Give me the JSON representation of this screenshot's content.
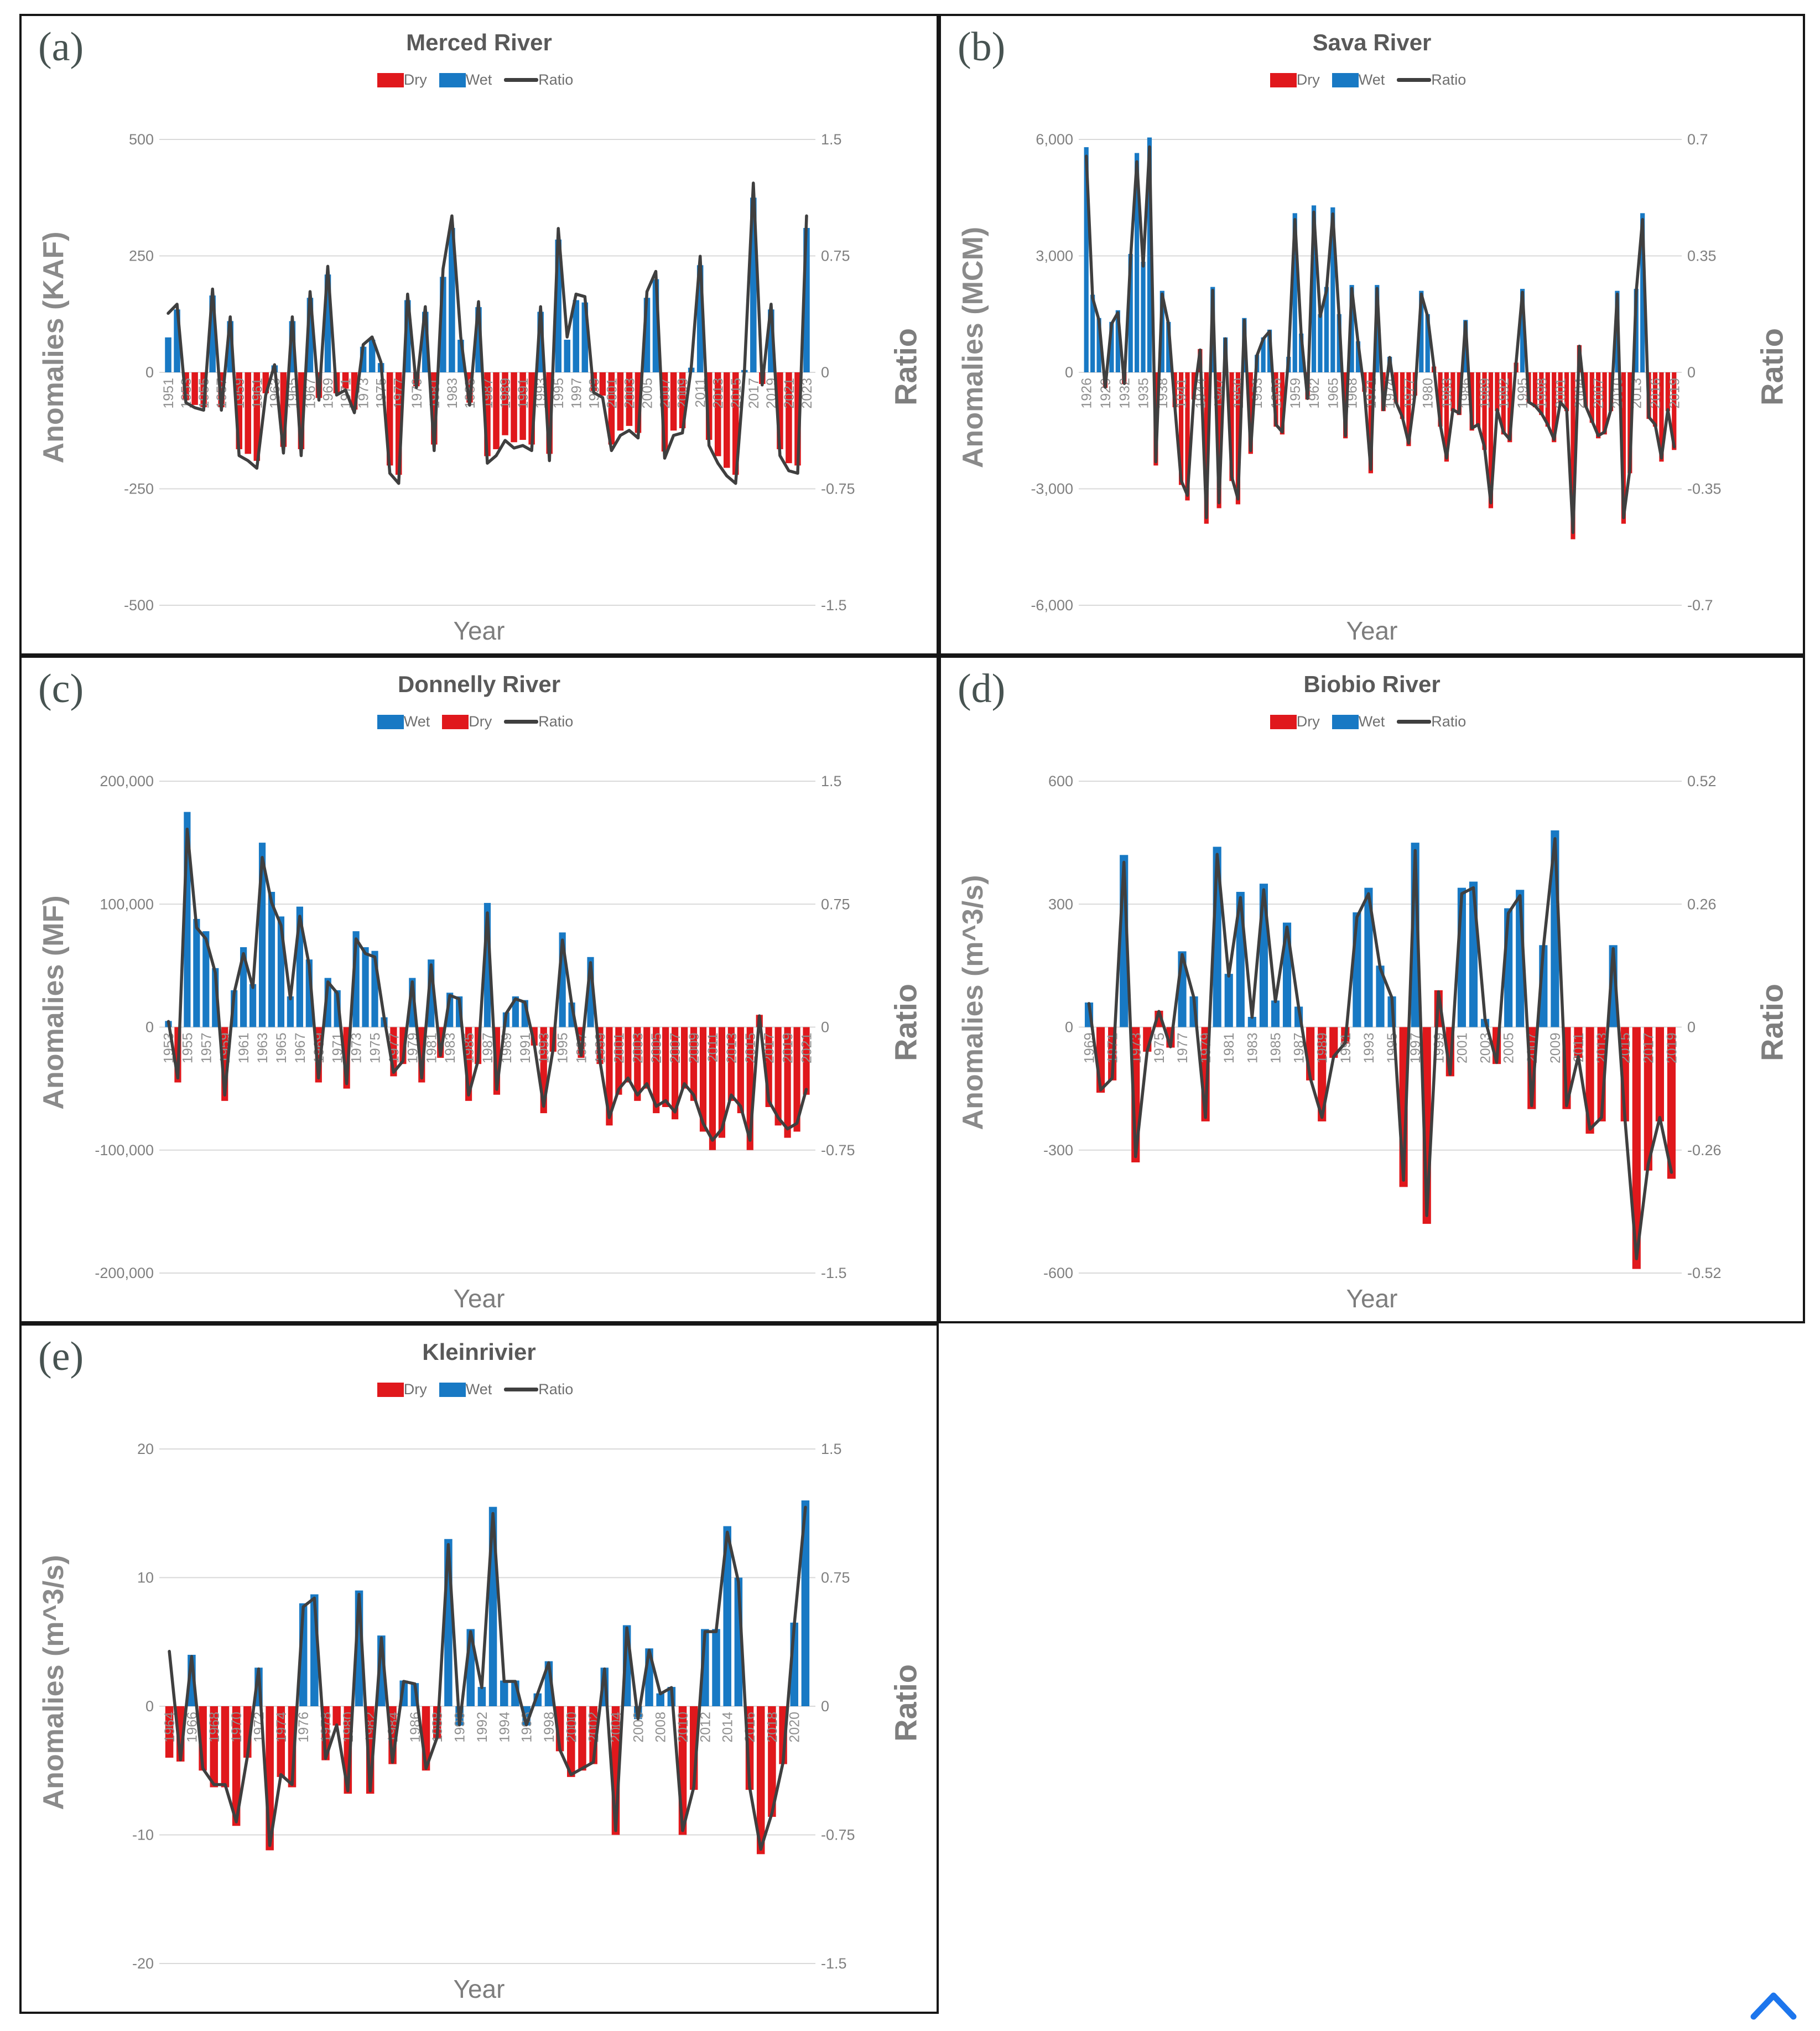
{
  "palette": {
    "dry": "#E0181C",
    "wet": "#1879C4",
    "ratio_line": "#3F3F3F",
    "grid": "#D9D9D9",
    "title_text": "#595959",
    "tick_text": "#7F7F7F",
    "year_tick_text": "#8F8F8F",
    "axis_title_text": "#8A8A8A",
    "panel_letter_text": "#475351",
    "chevron": "#1D76ED"
  },
  "icons": {
    "back_to_top": "chevron-up-icon"
  },
  "chart_data": [
    {
      "id": "a",
      "type": "bar",
      "panel_label": "(a)",
      "title": "Merced River",
      "legend": [
        {
          "key": "dry",
          "label": "Dry"
        },
        {
          "key": "wet",
          "label": "Wet"
        },
        {
          "key": "ratio",
          "label": "Ratio"
        }
      ],
      "x_label": "Year",
      "y_left": {
        "title": "Anomalies (KAF)",
        "tick_values": [
          500,
          250,
          0,
          -250,
          -500
        ],
        "tick_labels": [
          "500",
          "250",
          "0",
          "-250",
          "-500"
        ]
      },
      "y_right": {
        "title": "Ratio",
        "tick_values": [
          1.5,
          0.75,
          0,
          -0.75,
          -1.5
        ],
        "tick_labels": [
          "1.5",
          "0.75",
          "0",
          "-0.75",
          "-1.5"
        ]
      },
      "start_year": 1951,
      "x_ticks": {
        "start": 1951,
        "step": 2
      },
      "values": [
        75,
        135,
        -60,
        -70,
        -75,
        165,
        -75,
        110,
        -165,
        -175,
        -190,
        -45,
        15,
        -160,
        110,
        -165,
        160,
        -55,
        210,
        -45,
        -35,
        -80,
        55,
        70,
        20,
        -200,
        -220,
        155,
        -30,
        130,
        -155,
        205,
        310,
        70,
        -65,
        140,
        -180,
        -165,
        -135,
        -150,
        -145,
        -155,
        130,
        -175,
        285,
        70,
        155,
        150,
        -40,
        -50,
        -155,
        -125,
        -115,
        -130,
        160,
        200,
        -170,
        -125,
        -120,
        10,
        230,
        -145,
        -180,
        -205,
        -220,
        5,
        375,
        -25,
        135,
        -165,
        -195,
        -200,
        310
      ],
      "dry_positive_years": [],
      "wet_negative_years": [],
      "ratio_scale": 0.00325,
      "ratio_overrides": {
        "1951": 0.38
      }
    },
    {
      "id": "b",
      "type": "bar",
      "panel_label": "(b)",
      "title": "Sava River",
      "legend": [
        {
          "key": "dry",
          "label": "Dry"
        },
        {
          "key": "wet",
          "label": "Wet"
        },
        {
          "key": "ratio",
          "label": "Ratio"
        }
      ],
      "x_label": "Year",
      "y_left": {
        "title": "Anomalies (MCM)",
        "tick_values": [
          6000,
          3000,
          0,
          -3000,
          -6000
        ],
        "tick_labels": [
          "6,000",
          "3,000",
          "0",
          "-3,000",
          "-6,000"
        ]
      },
      "y_right": {
        "title": "Ratio",
        "tick_values": [
          0.7,
          0.35,
          0,
          -0.35,
          -0.7
        ],
        "tick_labels": [
          "0.7",
          "0.35",
          "0",
          "-0.35",
          "-0.7"
        ]
      },
      "start_year": 1926,
      "x_ticks": {
        "start": 1926,
        "step": 3
      },
      "values": [
        5800,
        2000,
        1400,
        -400,
        1300,
        1600,
        -300,
        3050,
        5650,
        2850,
        6050,
        -2400,
        2100,
        1300,
        -900,
        -2900,
        -3300,
        -700,
        600,
        -3900,
        2200,
        -3500,
        900,
        -2800,
        -3400,
        1400,
        -2100,
        450,
        900,
        1100,
        -1400,
        -1600,
        400,
        4100,
        1000,
        -700,
        4300,
        1500,
        2200,
        4250,
        1500,
        -1700,
        2250,
        800,
        -500,
        -2600,
        2250,
        -1000,
        400,
        -800,
        -1200,
        -1900,
        -600,
        2100,
        1500,
        150,
        -1400,
        -2300,
        -1000,
        -1100,
        1350,
        -1500,
        -1400,
        -2000,
        -3500,
        -1000,
        -1600,
        -1800,
        250,
        2150,
        -800,
        -900,
        -1100,
        -1400,
        -1800,
        -800,
        -1000,
        -4300,
        700,
        -900,
        -1300,
        -1700,
        -1600,
        -1000,
        2100,
        -3900,
        -2600,
        2150,
        4100,
        -1200,
        -1400,
        -2300,
        -1000,
        -2000
      ],
      "dry_positive_years": [
        1944,
        1981,
        1994,
        2004
      ],
      "wet_negative_years": [],
      "ratio_scale": 0.000112,
      "ratio_overrides": {}
    },
    {
      "id": "c",
      "type": "bar",
      "panel_label": "(c)",
      "title": "Donnelly River",
      "legend": [
        {
          "key": "wet",
          "label": "Wet"
        },
        {
          "key": "dry",
          "label": "Dry"
        },
        {
          "key": "ratio",
          "label": "Ratio"
        }
      ],
      "x_label": "Year",
      "y_left": {
        "title": "Anomalies (MF)",
        "tick_values": [
          200000,
          100000,
          0,
          -100000,
          -200000
        ],
        "tick_labels": [
          "200,000",
          "100,000",
          "0",
          "-100,000",
          "-200,000"
        ]
      },
      "y_right": {
        "title": "Ratio",
        "tick_values": [
          1.5,
          0.75,
          0,
          -0.75,
          -1.5
        ],
        "tick_labels": [
          "1.5",
          "0.75",
          "0",
          "-0.75",
          "-1.5"
        ]
      },
      "start_year": 1953,
      "x_ticks": {
        "start": 1953,
        "step": 2
      },
      "values": [
        5000,
        -45000,
        175000,
        88000,
        78000,
        48000,
        -60000,
        30000,
        65000,
        35000,
        150000,
        110000,
        90000,
        25000,
        98000,
        55000,
        -45000,
        40000,
        30000,
        -50000,
        78000,
        65000,
        62000,
        8000,
        -40000,
        -30000,
        40000,
        -45000,
        55000,
        -25000,
        28000,
        25000,
        -60000,
        -30000,
        101000,
        -55000,
        12000,
        25000,
        22000,
        -15000,
        -70000,
        -20000,
        77000,
        20000,
        -25000,
        57000,
        -30000,
        -80000,
        -55000,
        -45000,
        -60000,
        -50000,
        -70000,
        -65000,
        -75000,
        -50000,
        -60000,
        -85000,
        -100000,
        -90000,
        -60000,
        -70000,
        -100000,
        10000,
        -65000,
        -80000,
        -90000,
        -85000,
        -55000
      ],
      "dry_positive_years": [
        2016
      ],
      "wet_negative_years": [],
      "ratio_scale": 6.9e-06,
      "ratio_overrides": {}
    },
    {
      "id": "d",
      "type": "bar",
      "panel_label": "(d)",
      "title": "Biobio River",
      "legend": [
        {
          "key": "dry",
          "label": "Dry"
        },
        {
          "key": "wet",
          "label": "Wet"
        },
        {
          "key": "ratio",
          "label": "Ratio"
        }
      ],
      "x_label": "Year",
      "y_left": {
        "title": "Anomalies (m^3/s)",
        "tick_values": [
          600,
          300,
          0,
          -300,
          -600
        ],
        "tick_labels": [
          "600",
          "300",
          "0",
          "-300",
          "-600"
        ]
      },
      "y_right": {
        "title": "Ratio",
        "tick_values": [
          0.52,
          0.26,
          0,
          -0.26,
          -0.52
        ],
        "tick_labels": [
          "0.52",
          "0.26",
          "0",
          "-0.26",
          "-0.52"
        ]
      },
      "start_year": 1969,
      "x_ticks": {
        "start": 1969,
        "step": 2
      },
      "values": [
        60,
        -160,
        -130,
        420,
        -330,
        -60,
        40,
        -50,
        185,
        75,
        -230,
        440,
        130,
        330,
        25,
        350,
        65,
        255,
        50,
        -130,
        -230,
        -75,
        -40,
        280,
        340,
        150,
        75,
        -390,
        450,
        -480,
        90,
        -120,
        340,
        355,
        20,
        -90,
        290,
        335,
        -200,
        200,
        480,
        -200,
        -75,
        -260,
        -230,
        200,
        -230,
        -590,
        -350,
        -230,
        -370
      ],
      "dry_positive_years": [
        1975,
        1999
      ],
      "wet_negative_years": [],
      "ratio_scale": 0.00083,
      "ratio_overrides": {}
    },
    {
      "id": "e",
      "type": "bar",
      "panel_label": "(e)",
      "title": "Kleinrivier",
      "legend": [
        {
          "key": "dry",
          "label": "Dry"
        },
        {
          "key": "wet",
          "label": "Wet"
        },
        {
          "key": "ratio",
          "label": "Ratio"
        }
      ],
      "x_label": "Year",
      "y_left": {
        "title": "Anomalies (m^3/s)",
        "tick_values": [
          20,
          10,
          0,
          -10,
          -20
        ],
        "tick_labels": [
          "20",
          "10",
          "0",
          "-10",
          "-20"
        ]
      },
      "y_right": {
        "title": "Ratio",
        "tick_values": [
          1.5,
          0.75,
          0,
          -0.75,
          -1.5
        ],
        "tick_labels": [
          "1.5",
          "0.75",
          "0",
          "-0.75",
          "-1.5"
        ]
      },
      "start_year": 1964,
      "x_ticks": {
        "start": 1964,
        "step": 2
      },
      "values": [
        -4,
        -4.3,
        4,
        -5,
        -6.3,
        -6.3,
        -9.3,
        -4,
        3,
        -11.2,
        -5.5,
        -6.3,
        8,
        8.7,
        -4.2,
        -1.5,
        -6.8,
        9,
        -6.8,
        5.5,
        -4.5,
        2,
        1.8,
        -5,
        -2.5,
        13,
        -1.5,
        6,
        1.5,
        15.5,
        2,
        2,
        -1.5,
        1,
        3.5,
        -3.5,
        -5.5,
        -5,
        -4.5,
        3,
        -10,
        6.3,
        -1,
        4.5,
        1,
        1.5,
        -10,
        -6.5,
        6,
        6,
        14,
        10,
        -6.5,
        -11.5,
        -8.6,
        -4.5,
        6.5,
        16
      ],
      "dry_positive_years": [],
      "wet_negative_years": [
        1990,
        1996,
        2006
      ],
      "ratio_scale": 0.0725,
      "ratio_overrides": {
        "1964": 0.32
      }
    }
  ]
}
